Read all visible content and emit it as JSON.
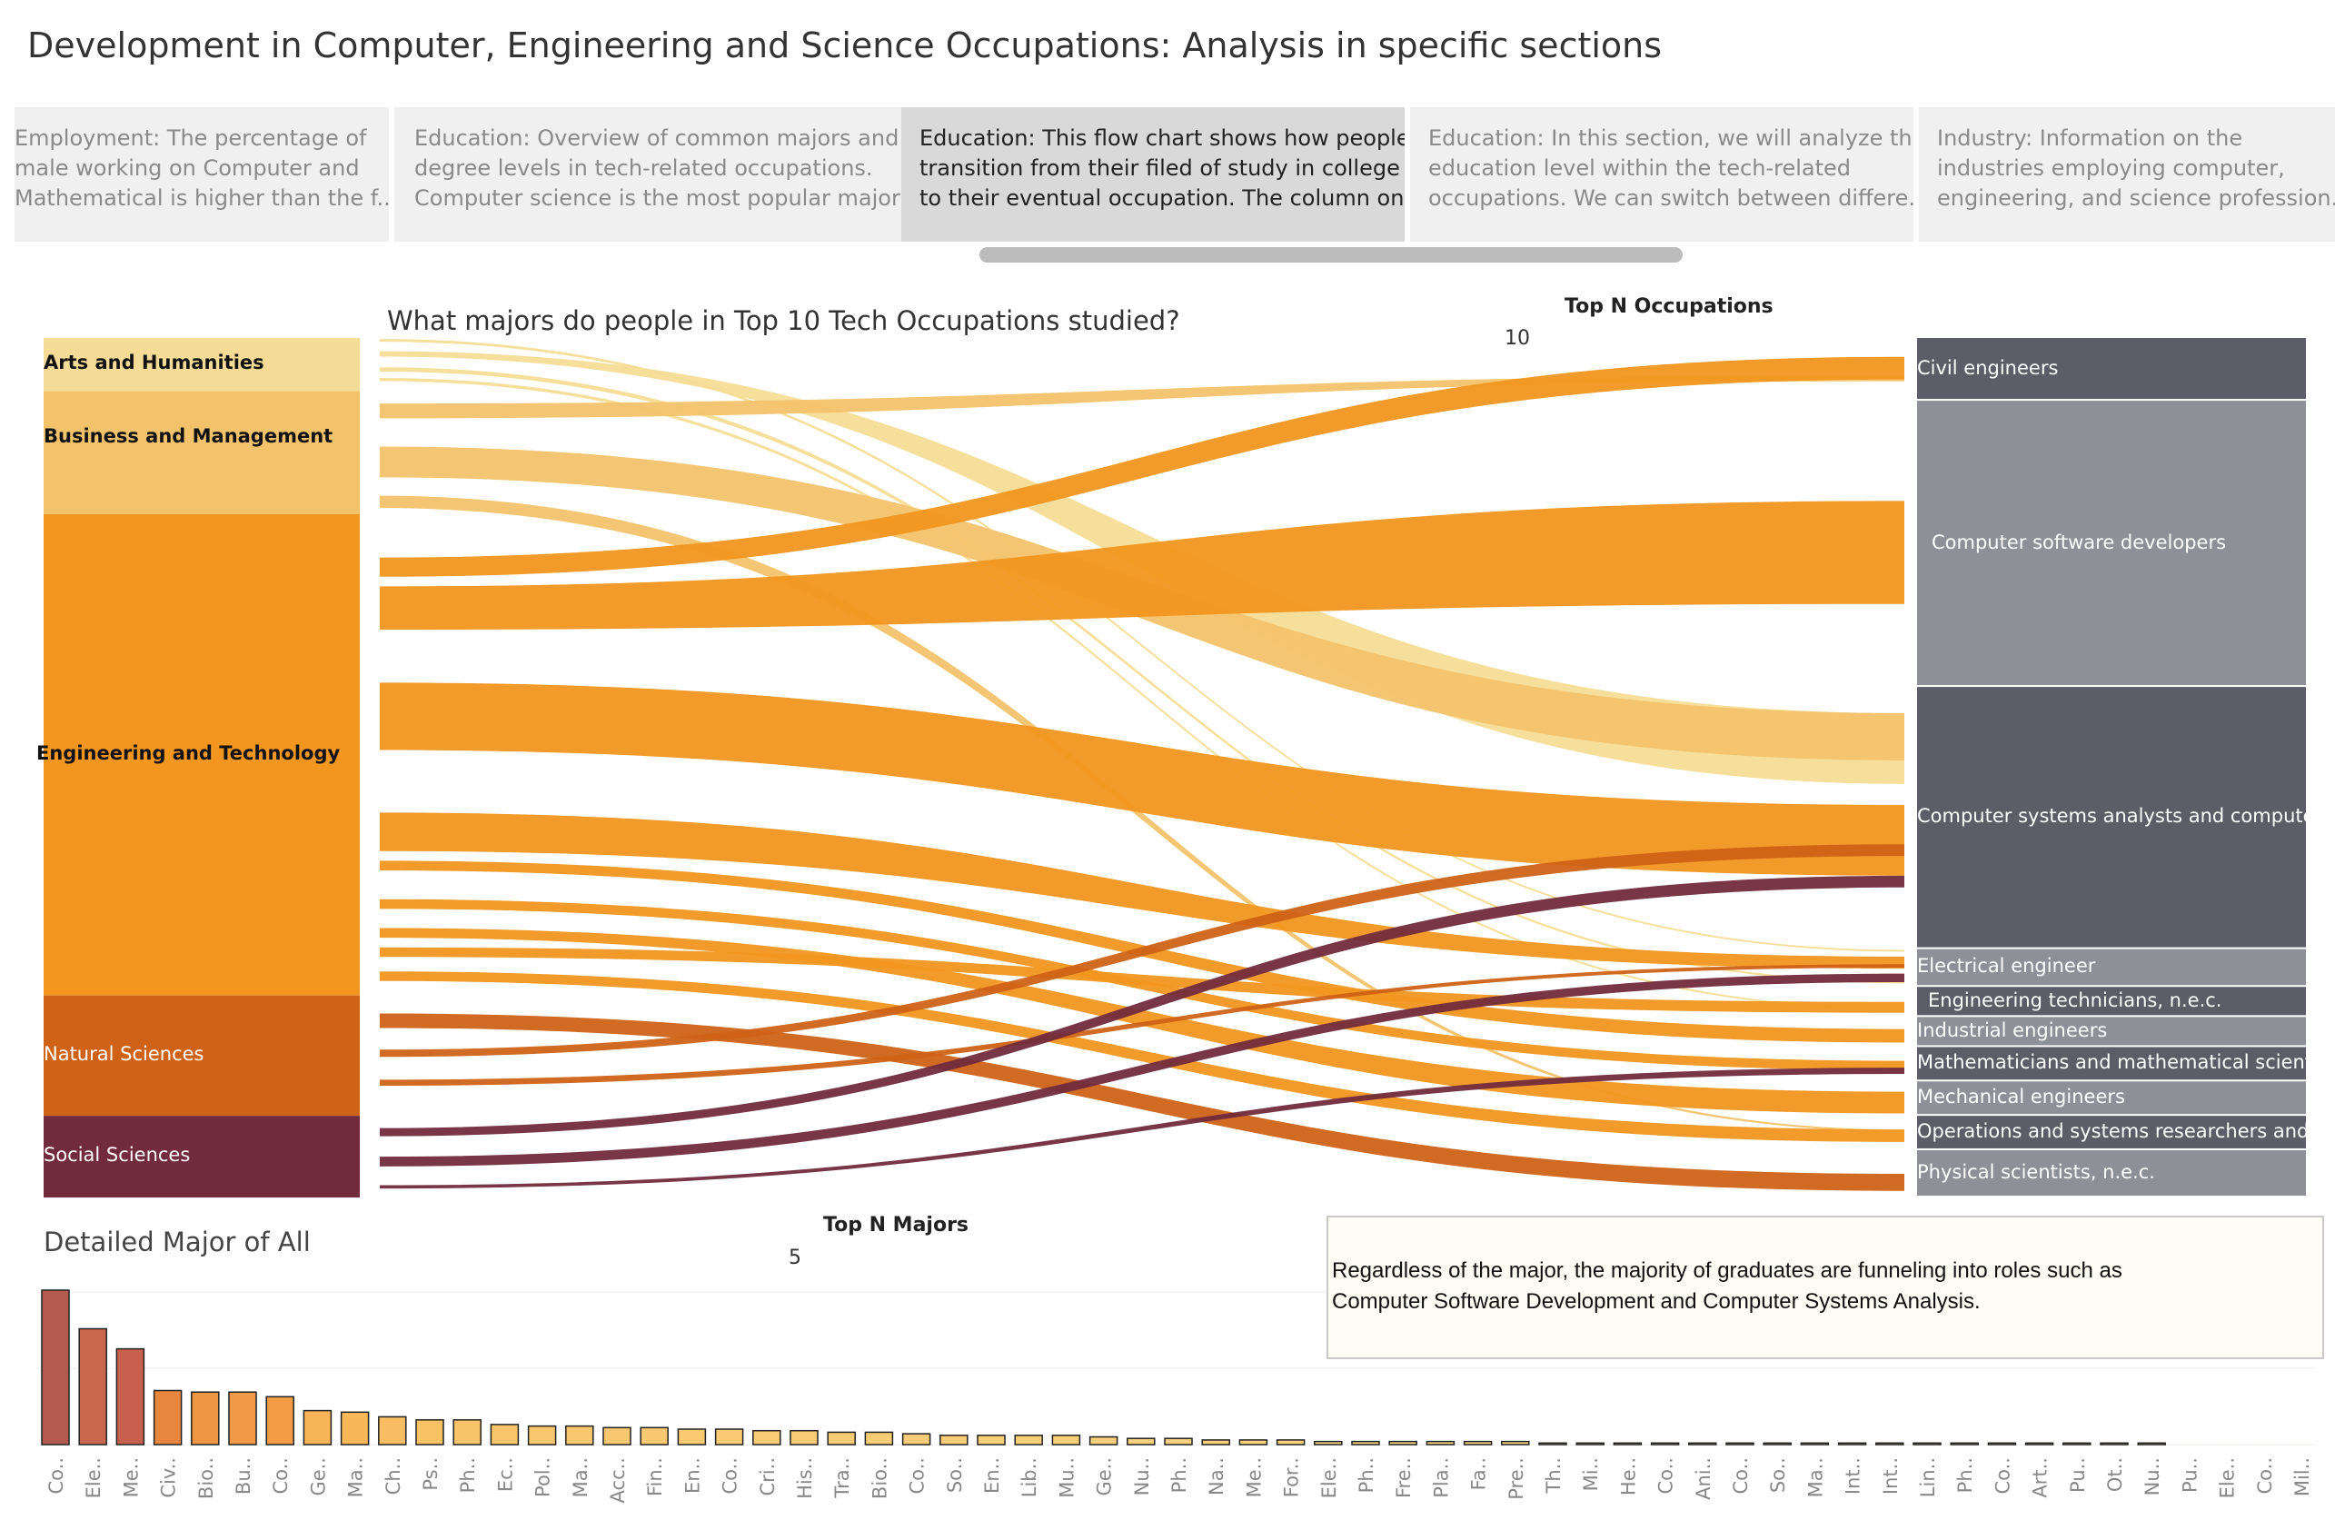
{
  "page_title": "Development in Computer, Engineering and Science Occupations: Analysis in specific sections",
  "story_tabs": [
    {
      "text": "Employment: The percentage of\nmale working on Computer and\nMathematical is higher than the f..",
      "active": false
    },
    {
      "text": "Education: Overview of common majors and\ndegree levels in tech-related occupations.\nComputer science is the most popular major ..",
      "active": false
    },
    {
      "text": "Education: This flow chart shows how people\ntransition from their filed of study in college\nto their eventual occupation. The column on ..",
      "active": true
    },
    {
      "text": "Education: In this section, we will analyze the\neducation level within the tech-related\noccupations. We can switch between differe..",
      "active": false
    },
    {
      "text": "Industry: Information on the\nindustries employing computer,\nengineering, and science profession..",
      "active": false
    }
  ],
  "sankey": {
    "title": "What majors do people in Top 10 Tech Occupations studied?",
    "top_n_occupations_label": "Top N Occupations",
    "top_n_occupations_value": "10",
    "top_n_majors_label": "Top N Majors",
    "top_n_majors_value": "5",
    "major_categories": [
      {
        "name": "Arts and Humanities",
        "color": "#f5dc96",
        "share": 6.2
      },
      {
        "name": "Business and Management",
        "color": "#f3c36b",
        "share": 14.3
      },
      {
        "name": "Engineering and Technology",
        "color": "#f2961f",
        "share": 56.0
      },
      {
        "name": "Natural Sciences",
        "color": "#cf6216",
        "share": 14.0
      },
      {
        "name": "Social Sciences",
        "color": "#722b3d",
        "share": 9.5
      }
    ],
    "occupations": [
      {
        "name": "Civil engineers",
        "color": "#5c5d66",
        "share": 7.3
      },
      {
        "name": "Computer software developers",
        "color": "#8e9097",
        "share": 33.3
      },
      {
        "name": "Computer systems analysts and computer scientists",
        "color": "#5c5d66",
        "share": 30.5
      },
      {
        "name": "Electrical engineer",
        "color": "#8e9097",
        "share": 4.4
      },
      {
        "name": "Engineering technicians, n.e.c.",
        "color": "#5c5d66",
        "share": 3.5
      },
      {
        "name": "Industrial engineers",
        "color": "#8e9097",
        "share": 3.5
      },
      {
        "name": "Mathematicians and mathematical scientists",
        "color": "#5c5d66",
        "share": 4.0
      },
      {
        "name": "Mechanical engineers",
        "color": "#8e9097",
        "share": 4.0
      },
      {
        "name": "Operations and systems researchers and analysts",
        "color": "#5c5d66",
        "share": 4.0
      },
      {
        "name": "Physical scientists, n.e.c.",
        "color": "#8e9097",
        "share": 5.5
      }
    ]
  },
  "detail": {
    "title": "Detailed Major of All"
  },
  "annotation": {
    "text": "Regardless of the major, the majority of graduates are funneling into roles such as\nComputer Software Development and Computer Systems Analysis."
  },
  "chart_data": {
    "type": "bar",
    "title": "Detailed Major of All",
    "xlabel": "",
    "ylabel": "",
    "categories": [
      "Co..",
      "Ele..",
      "Me..",
      "Civ..",
      "Bio..",
      "Bu..",
      "Co..",
      "Ge..",
      "Ma..",
      "Ch..",
      "Ps..",
      "Ph..",
      "Ec..",
      "Pol..",
      "Ma..",
      "Acc..",
      "Fin..",
      "En..",
      "Co..",
      "Cri..",
      "His..",
      "Tra..",
      "Bio..",
      "Co..",
      "So..",
      "En..",
      "Lib..",
      "Mu..",
      "Ge..",
      "Nu..",
      "Ph..",
      "Na..",
      "Me..",
      "For..",
      "Ele..",
      "Ph..",
      "Fre..",
      "Pla..",
      "Fa..",
      "Pre..",
      "Th..",
      "Mi..",
      "He..",
      "Co..",
      "Ani..",
      "Co..",
      "So..",
      "Ma..",
      "Int..",
      "Int..",
      "Lin..",
      "Ph..",
      "Co..",
      "Art..",
      "Pu..",
      "Ot..",
      "Nu..",
      "Pu..",
      "Ele..",
      "Co..",
      "Mil.."
    ],
    "values": [
      100,
      75,
      62,
      35,
      34,
      34,
      31,
      22,
      21,
      18,
      16,
      16,
      13,
      12,
      12,
      11,
      11,
      10,
      10,
      9,
      9,
      8,
      8,
      7,
      6,
      6,
      6,
      6,
      5,
      4,
      4,
      3,
      3,
      3,
      2,
      2,
      2,
      2,
      2,
      2,
      1,
      1,
      1,
      1,
      1,
      1,
      1,
      1,
      1,
      1,
      1,
      1,
      1,
      1,
      1,
      1,
      1,
      0,
      0,
      0,
      0
    ],
    "colors": [
      "#b45a4f",
      "#c9674f",
      "#c8604d",
      "#e8863e",
      "#ee9644",
      "#f09a47",
      "#f39c46",
      "#f7b457",
      "#f8b85a",
      "#f8bd62",
      "#f9c265",
      "#f9c369",
      "#f9c56b",
      "#f9c76d",
      "#f9c76e",
      "#f9c870",
      "#f9c971",
      "#f9ca72",
      "#f9ca73",
      "#f9cb74",
      "#f9cb74",
      "#f9cc75",
      "#f9cc76",
      "#f9cd77",
      "#f9cd78",
      "#f9ce78",
      "#f9ce79",
      "#f9cf7a",
      "#f9cf7b",
      "#f9d07c",
      "#f9d07c",
      "#f9d17d",
      "#f9d17e",
      "#f9d17e",
      "#f9d27f",
      "#f9d27f",
      "#f9d380",
      "#f9d380",
      "#f9d381",
      "#f9d481",
      "#f9d482",
      "#f9d482",
      "#f9d583",
      "#f9d583",
      "#f9d584",
      "#f9d684",
      "#f9d685",
      "#f9d685",
      "#f9d786",
      "#f9d786",
      "#f9d787",
      "#f9d787",
      "#f9d888",
      "#f9d888",
      "#f9d888",
      "#f9d989",
      "#f9d989",
      "#f9d98a",
      "#f9da8a",
      "#f9da8b",
      "#f9da8b"
    ],
    "grid": true
  }
}
